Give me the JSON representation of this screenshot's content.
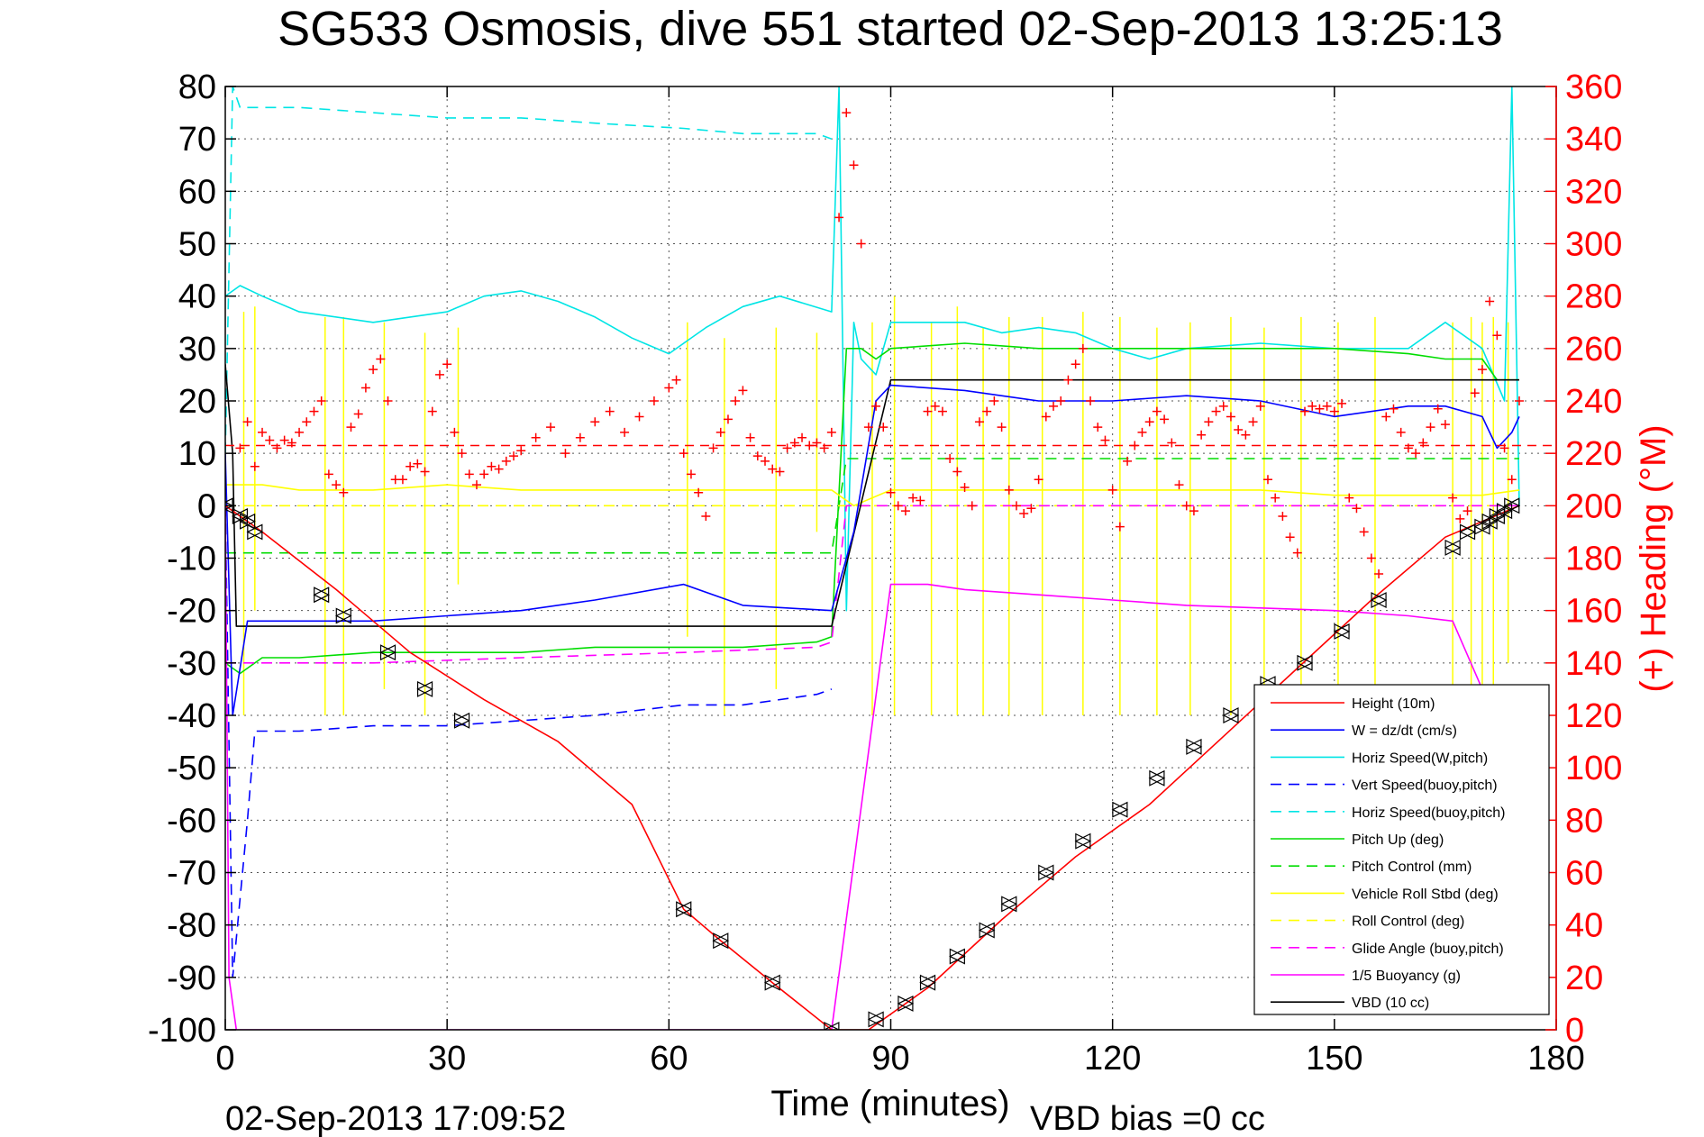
{
  "chart_data": {
    "type": "line",
    "title": "SG533 Osmosis, dive 551 started 02-Sep-2013 13:25:13",
    "xlabel": "Time (minutes)",
    "ylabel": "",
    "y2label": "(+) Heading (°M)",
    "footer_left": "02-Sep-2013 17:09:52",
    "footer_right": "VBD bias =0 cc",
    "xlim": [
      0,
      180
    ],
    "ylim": [
      -100,
      80
    ],
    "y2lim": [
      0,
      360
    ],
    "xticks": [
      0,
      30,
      60,
      90,
      120,
      150,
      180
    ],
    "yticks": [
      80,
      70,
      60,
      50,
      40,
      30,
      20,
      10,
      0,
      -10,
      -20,
      -30,
      -40,
      -50,
      -60,
      -70,
      -80,
      -90,
      -100
    ],
    "y2ticks": [
      360,
      340,
      320,
      300,
      280,
      260,
      240,
      220,
      200,
      180,
      160,
      140,
      120,
      100,
      80,
      60,
      40,
      20,
      0
    ],
    "grid": true,
    "legend_position": "bottom-right",
    "colors": {
      "red": "#ff0000",
      "blue": "#0000ff",
      "cyan": "#00e5e5",
      "green": "#00dd00",
      "yellow": "#ffff00",
      "magenta": "#ff00ff",
      "black": "#000000"
    },
    "series": [
      {
        "name": "Height (10m)",
        "color": "#ff0000",
        "dash": "solid",
        "marker": "none",
        "x": [
          0,
          5,
          15,
          25,
          35,
          45,
          55,
          62,
          67,
          74,
          82,
          87,
          95,
          105,
          115,
          125,
          135,
          145,
          155,
          165,
          175
        ],
        "y": [
          0,
          -5,
          -16,
          -28,
          -37,
          -45,
          -57,
          -77,
          -83,
          -91,
          -100,
          -100,
          -92,
          -79,
          -67,
          -57,
          -44,
          -31,
          -18,
          -6,
          0
        ]
      },
      {
        "name": "W = dz/dt (cm/s)",
        "color": "#0000ff",
        "dash": "solid",
        "marker": "none",
        "x": [
          0,
          1,
          3,
          5,
          10,
          20,
          30,
          40,
          50,
          62,
          70,
          82,
          85,
          88,
          90,
          100,
          110,
          120,
          130,
          140,
          150,
          160,
          165,
          170,
          172,
          174,
          175
        ],
        "y": [
          10,
          -40,
          -22,
          -22,
          -22,
          -22,
          -21,
          -20,
          -18,
          -15,
          -19,
          -20,
          -5,
          20,
          23,
          22,
          20,
          20,
          21,
          20,
          17,
          19,
          19,
          17,
          11,
          14,
          17
        ]
      },
      {
        "name": "Horiz Speed(W,pitch)",
        "color": "#00e5e5",
        "dash": "solid",
        "marker": "none",
        "x": [
          0,
          2,
          5,
          10,
          20,
          30,
          35,
          40,
          45,
          50,
          55,
          60,
          65,
          70,
          75,
          82,
          83,
          84,
          85,
          86,
          88,
          90,
          100,
          105,
          110,
          115,
          120,
          125,
          130,
          140,
          150,
          160,
          165,
          170,
          173,
          174,
          175
        ],
        "y": [
          40,
          42,
          40,
          37,
          35,
          37,
          40,
          41,
          39,
          36,
          32,
          29,
          34,
          38,
          40,
          37,
          80,
          -20,
          35,
          28,
          25,
          35,
          35,
          33,
          34,
          33,
          30,
          28,
          30,
          31,
          30,
          30,
          35,
          30,
          20,
          80,
          0
        ]
      },
      {
        "name": "Vert Speed(buoy,pitch)",
        "color": "#0000ff",
        "dash": "dashed",
        "marker": "none",
        "x": [
          0,
          1,
          3,
          4,
          5,
          10,
          20,
          30,
          40,
          50,
          62,
          70,
          80,
          82
        ],
        "y": [
          0,
          -90,
          -60,
          -43,
          -43,
          -43,
          -42,
          -42,
          -41,
          -40,
          -38,
          -38,
          -36,
          -35
        ]
      },
      {
        "name": "Horiz Speed(buoy,pitch)",
        "color": "#00e5e5",
        "dash": "dashed",
        "marker": "none",
        "x": [
          0,
          1,
          2,
          4,
          10,
          20,
          30,
          40,
          50,
          62,
          70,
          80,
          82
        ],
        "y": [
          10,
          80,
          76,
          76,
          76,
          75,
          74,
          74,
          73,
          72,
          71,
          71,
          70
        ]
      },
      {
        "name": "Pitch Up (deg)",
        "color": "#00dd00",
        "dash": "solid",
        "marker": "none",
        "x": [
          0,
          2,
          5,
          10,
          20,
          30,
          40,
          50,
          62,
          70,
          80,
          82,
          84,
          86,
          88,
          90,
          100,
          110,
          120,
          130,
          140,
          150,
          160,
          165,
          170,
          172,
          175
        ],
        "y": [
          -30,
          -32,
          -29,
          -29,
          -28,
          -28,
          -28,
          -27,
          -27,
          -27,
          -26,
          -25,
          30,
          30,
          28,
          30,
          31,
          30,
          30,
          30,
          30,
          30,
          29,
          28,
          28,
          24,
          24
        ]
      },
      {
        "name": "Pitch Control (mm)",
        "color": "#00dd00",
        "dash": "dashed",
        "marker": "none",
        "x": [
          0,
          82,
          84,
          175
        ],
        "y": [
          -9,
          -9,
          9,
          9
        ]
      },
      {
        "name": "Vehicle Roll Stbd (deg)",
        "color": "#ffff00",
        "dash": "solid",
        "marker": "none",
        "x": [
          0,
          5,
          10,
          20,
          30,
          40,
          50,
          60,
          70,
          80,
          82,
          85,
          90,
          100,
          110,
          120,
          130,
          140,
          150,
          160,
          170,
          175
        ],
        "y": [
          4,
          4,
          3,
          3,
          4,
          3,
          3,
          3,
          3,
          3,
          3,
          0,
          3,
          3,
          3,
          3,
          3,
          3,
          2,
          2,
          2,
          3
        ]
      },
      {
        "name": "Roll Control (deg)",
        "color": "#ffff00",
        "dash": "dashed",
        "marker": "none",
        "x": [
          0,
          82,
          84,
          175
        ],
        "y": [
          0,
          0,
          0,
          0
        ]
      },
      {
        "name": "Glide Angle (buoy,pitch)",
        "color": "#ff00ff",
        "dash": "dashed",
        "marker": "none",
        "x": [
          0,
          5,
          20,
          40,
          62,
          80,
          82,
          84,
          175
        ],
        "y": [
          -30,
          -30,
          -30,
          -29,
          -28,
          -27,
          -26,
          0,
          0
        ]
      },
      {
        "name": "1/5 Buoyancy (g)",
        "color": "#ff00ff",
        "dash": "solid",
        "marker": "none",
        "x": [
          0,
          0.5,
          1.5,
          82,
          90,
          95,
          100,
          110,
          120,
          130,
          140,
          150,
          160,
          166,
          170,
          175
        ],
        "y": [
          0,
          -90,
          -100,
          -100,
          -15,
          -15,
          -16,
          -17,
          -18,
          -19,
          -19.5,
          -20,
          -21,
          -22,
          -35,
          -35
        ]
      },
      {
        "name": "VBD (10 cc)",
        "color": "#000000",
        "dash": "solid",
        "marker": "none",
        "x": [
          0,
          1,
          1.5,
          82,
          90,
          175
        ],
        "y": [
          27,
          10,
          -23,
          -23,
          24,
          24
        ]
      }
    ],
    "heading": {
      "name": "(+) Heading",
      "axis": "right",
      "color": "#ff0000",
      "marker": "plus",
      "reference_value": 223,
      "x": [
        2,
        3,
        4,
        5,
        6,
        7,
        8,
        9,
        10,
        11,
        12,
        13,
        14,
        15,
        16,
        17,
        18,
        19,
        20,
        21,
        22,
        23,
        24,
        25,
        26,
        27,
        28,
        29,
        30,
        31,
        32,
        33,
        34,
        35,
        36,
        37,
        38,
        39,
        40,
        42,
        44,
        46,
        48,
        50,
        52,
        54,
        56,
        58,
        60,
        61,
        62,
        63,
        64,
        65,
        66,
        67,
        68,
        69,
        70,
        71,
        72,
        73,
        74,
        75,
        76,
        77,
        78,
        79,
        80,
        81,
        82,
        83,
        84,
        85,
        86,
        87,
        88,
        89,
        90,
        91,
        92,
        93,
        94,
        95,
        96,
        97,
        98,
        99,
        100,
        101,
        102,
        103,
        104,
        105,
        106,
        107,
        108,
        109,
        110,
        111,
        112,
        113,
        114,
        115,
        116,
        117,
        118,
        119,
        120,
        121,
        122,
        123,
        124,
        125,
        126,
        127,
        128,
        129,
        130,
        131,
        132,
        133,
        134,
        135,
        136,
        137,
        138,
        139,
        140,
        141,
        142,
        143,
        144,
        145,
        146,
        147,
        148,
        149,
        150,
        151,
        152,
        153,
        154,
        155,
        156,
        157,
        158,
        159,
        160,
        161,
        162,
        163,
        164,
        165,
        166,
        167,
        168,
        169,
        170,
        171,
        172,
        173,
        174,
        175
      ],
      "y": [
        222,
        232,
        215,
        228,
        225,
        222,
        225,
        224,
        228,
        232,
        236,
        240,
        212,
        208,
        205,
        230,
        235,
        245,
        252,
        256,
        240,
        210,
        210,
        215,
        216,
        213,
        236,
        250,
        254,
        228,
        220,
        212,
        208,
        212,
        215,
        214,
        217,
        219,
        221,
        226,
        230,
        220,
        226,
        232,
        236,
        228,
        234,
        240,
        245,
        248,
        220,
        212,
        205,
        196,
        222,
        228,
        233,
        240,
        244,
        226,
        219,
        217,
        214,
        213,
        222,
        224,
        226,
        223,
        224,
        222,
        228,
        310,
        350,
        330,
        300,
        230,
        238,
        230,
        205,
        200,
        198,
        203,
        202,
        236,
        238,
        236,
        218,
        213,
        207,
        200,
        232,
        236,
        240,
        230,
        206,
        200,
        197,
        199,
        210,
        234,
        238,
        240,
        248,
        254,
        260,
        240,
        230,
        225,
        206,
        192,
        217,
        223,
        228,
        232,
        236,
        233,
        224,
        208,
        200,
        198,
        227,
        232,
        236,
        238,
        234,
        229,
        227,
        232,
        238,
        210,
        203,
        196,
        188,
        182,
        236,
        238,
        237,
        238,
        236,
        239,
        203,
        199,
        190,
        180,
        174,
        234,
        237,
        228,
        222,
        220,
        224,
        230,
        237,
        231,
        203,
        195,
        198,
        243,
        252,
        278,
        265,
        222,
        210,
        240
      ]
    },
    "depth_markers": {
      "series": "Height (10m)",
      "marker": "triangle-pair",
      "x": [
        0,
        2,
        3,
        4,
        13,
        16,
        22,
        27,
        32,
        62,
        67,
        74,
        82,
        88,
        92,
        95,
        99,
        103,
        106,
        111,
        116,
        121,
        126,
        131,
        136,
        141,
        146,
        151,
        156,
        166,
        168,
        170,
        171,
        172,
        173,
        174
      ],
      "y": [
        0,
        -2,
        -3,
        -5,
        -17,
        -21,
        -28,
        -35,
        -41,
        -77,
        -83,
        -91,
        -100,
        -98,
        -95,
        -91,
        -86,
        -81,
        -76,
        -70,
        -64,
        -58,
        -52,
        -46,
        -40,
        -34,
        -30,
        -24,
        -18,
        -8,
        -5,
        -4,
        -3,
        -2,
        -1,
        0
      ]
    },
    "roll_spikes": {
      "color": "#ffff00",
      "x": [
        2.5,
        4,
        13.5,
        16,
        21.5,
        27,
        31.5,
        62.5,
        67.5,
        74.5,
        80,
        87.5,
        90.5,
        95.5,
        99,
        102.5,
        106,
        110.5,
        116,
        121,
        126,
        130.5,
        136,
        140.5,
        145.5,
        150.5,
        155.5,
        166,
        168.5,
        170,
        171.5,
        173.5
      ],
      "y_top": [
        37,
        38,
        36,
        36,
        35,
        33,
        34,
        35,
        32,
        34,
        33,
        35,
        40,
        35,
        38,
        34,
        36,
        36,
        37,
        36,
        34,
        35,
        36,
        34,
        36,
        35,
        36,
        35,
        36,
        35,
        36,
        35
      ],
      "y_bottom": [
        -40,
        -20,
        -40,
        -40,
        -35,
        -40,
        -15,
        -25,
        -40,
        -35,
        -5,
        -40,
        -40,
        -40,
        -40,
        -40,
        -40,
        -40,
        -40,
        -40,
        -40,
        -40,
        -40,
        -35,
        -40,
        -40,
        -40,
        -35,
        -40,
        -35,
        -40,
        -30
      ]
    }
  }
}
